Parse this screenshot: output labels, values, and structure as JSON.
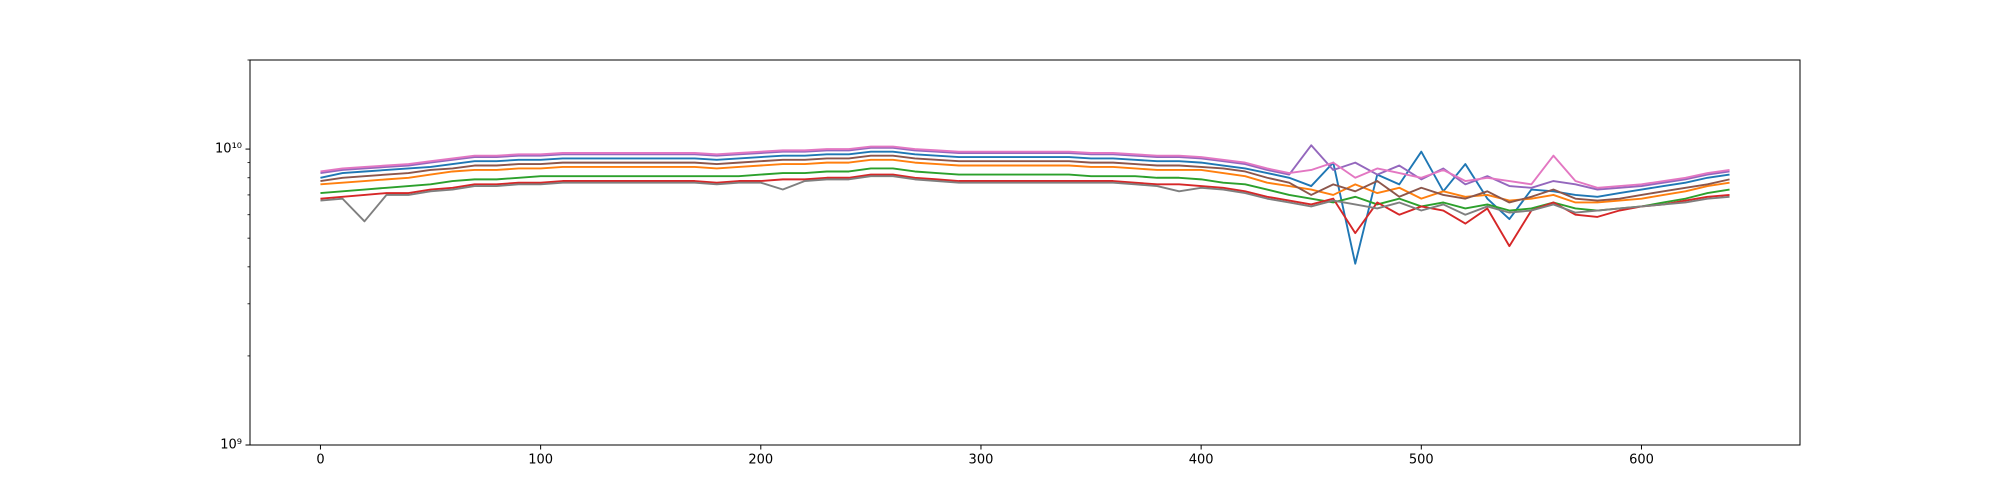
{
  "chart_data": {
    "type": "line",
    "log_y": true,
    "x": [
      0,
      10,
      20,
      30,
      40,
      50,
      60,
      70,
      80,
      90,
      100,
      110,
      120,
      130,
      140,
      150,
      160,
      170,
      180,
      190,
      200,
      210,
      220,
      230,
      240,
      250,
      260,
      270,
      280,
      290,
      300,
      310,
      320,
      330,
      340,
      350,
      360,
      370,
      380,
      390,
      400,
      410,
      420,
      430,
      440,
      450,
      460,
      470,
      480,
      490,
      500,
      510,
      520,
      530,
      540,
      550,
      560,
      570,
      580,
      590,
      600,
      610,
      620,
      630,
      640
    ],
    "xlim": [
      -32,
      672
    ],
    "xticks": [
      0,
      100,
      200,
      300,
      400,
      500,
      600
    ],
    "ylim": [
      1000000000.0,
      20000000000.0
    ],
    "yticks": [
      {
        "value": 1000000000.0,
        "label": "10⁹"
      },
      {
        "value": 10000000000.0,
        "label": "10¹⁰"
      }
    ],
    "yminorticks": [
      2000000000.0,
      3000000000.0,
      4000000000.0,
      5000000000.0,
      6000000000.0,
      7000000000.0,
      8000000000.0,
      9000000000.0,
      20000000000.0
    ],
    "series": [
      {
        "color": "#1f77b4",
        "values": [
          8000000000.0,
          8300000000.0,
          8400000000.0,
          8500000000.0,
          8600000000.0,
          8700000000.0,
          8900000000.0,
          9100000000.0,
          9100000000.0,
          9200000000.0,
          9200000000.0,
          9300000000.0,
          9300000000.0,
          9300000000.0,
          9300000000.0,
          9300000000.0,
          9300000000.0,
          9300000000.0,
          9200000000.0,
          9300000000.0,
          9400000000.0,
          9500000000.0,
          9500000000.0,
          9600000000.0,
          9600000000.0,
          9800000000.0,
          9800000000.0,
          9600000000.0,
          9500000000.0,
          9400000000.0,
          9400000000.0,
          9400000000.0,
          9400000000.0,
          9400000000.0,
          9400000000.0,
          9300000000.0,
          9300000000.0,
          9200000000.0,
          9100000000.0,
          9100000000.0,
          9000000000.0,
          8800000000.0,
          8600000000.0,
          8300000000.0,
          8000000000.0,
          7500000000.0,
          9000000000.0,
          4100000000.0,
          8200000000.0,
          7600000000.0,
          9800000000.0,
          7200000000.0,
          8900000000.0,
          6800000000.0,
          5800000000.0,
          7300000000.0,
          7200000000.0,
          7000000000.0,
          6900000000.0,
          7100000000.0,
          7300000000.0,
          7500000000.0,
          7700000000.0,
          8000000000.0,
          8200000000.0
        ]
      },
      {
        "color": "#ff7f0e",
        "values": [
          7600000000.0,
          7700000000.0,
          7800000000.0,
          7900000000.0,
          8000000000.0,
          8200000000.0,
          8400000000.0,
          8500000000.0,
          8500000000.0,
          8600000000.0,
          8600000000.0,
          8700000000.0,
          8700000000.0,
          8700000000.0,
          8700000000.0,
          8700000000.0,
          8700000000.0,
          8700000000.0,
          8600000000.0,
          8700000000.0,
          8800000000.0,
          8900000000.0,
          8900000000.0,
          9000000000.0,
          9000000000.0,
          9200000000.0,
          9200000000.0,
          9000000000.0,
          8900000000.0,
          8800000000.0,
          8800000000.0,
          8800000000.0,
          8800000000.0,
          8800000000.0,
          8800000000.0,
          8700000000.0,
          8700000000.0,
          8600000000.0,
          8500000000.0,
          8500000000.0,
          8500000000.0,
          8300000000.0,
          8100000000.0,
          7700000000.0,
          7500000000.0,
          7300000000.0,
          7000000000.0,
          7600000000.0,
          7100000000.0,
          7400000000.0,
          6800000000.0,
          7200000000.0,
          6900000000.0,
          7000000000.0,
          6700000000.0,
          6800000000.0,
          7000000000.0,
          6600000000.0,
          6600000000.0,
          6700000000.0,
          6800000000.0,
          7000000000.0,
          7200000000.0,
          7500000000.0,
          7700000000.0
        ]
      },
      {
        "color": "#2ca02c",
        "values": [
          7100000000.0,
          7200000000.0,
          7300000000.0,
          7400000000.0,
          7500000000.0,
          7600000000.0,
          7800000000.0,
          7900000000.0,
          7900000000.0,
          8000000000.0,
          8100000000.0,
          8100000000.0,
          8100000000.0,
          8100000000.0,
          8100000000.0,
          8100000000.0,
          8100000000.0,
          8100000000.0,
          8100000000.0,
          8100000000.0,
          8200000000.0,
          8300000000.0,
          8300000000.0,
          8400000000.0,
          8400000000.0,
          8600000000.0,
          8600000000.0,
          8400000000.0,
          8300000000.0,
          8200000000.0,
          8200000000.0,
          8200000000.0,
          8200000000.0,
          8200000000.0,
          8200000000.0,
          8100000000.0,
          8100000000.0,
          8100000000.0,
          8000000000.0,
          8000000000.0,
          7900000000.0,
          7700000000.0,
          7600000000.0,
          7300000000.0,
          7000000000.0,
          6800000000.0,
          6600000000.0,
          6900000000.0,
          6500000000.0,
          6800000000.0,
          6400000000.0,
          6600000000.0,
          6300000000.0,
          6500000000.0,
          6200000000.0,
          6300000000.0,
          6600000000.0,
          6300000000.0,
          6200000000.0,
          6300000000.0,
          6400000000.0,
          6600000000.0,
          6800000000.0,
          7100000000.0,
          7300000000.0
        ]
      },
      {
        "color": "#d62728",
        "values": [
          6800000000.0,
          6900000000.0,
          7000000000.0,
          7100000000.0,
          7100000000.0,
          7300000000.0,
          7400000000.0,
          7600000000.0,
          7600000000.0,
          7700000000.0,
          7700000000.0,
          7800000000.0,
          7800000000.0,
          7800000000.0,
          7800000000.0,
          7800000000.0,
          7800000000.0,
          7800000000.0,
          7700000000.0,
          7800000000.0,
          7800000000.0,
          7900000000.0,
          7900000000.0,
          8000000000.0,
          8000000000.0,
          8200000000.0,
          8200000000.0,
          8000000000.0,
          7900000000.0,
          7800000000.0,
          7800000000.0,
          7800000000.0,
          7800000000.0,
          7800000000.0,
          7800000000.0,
          7800000000.0,
          7800000000.0,
          7700000000.0,
          7600000000.0,
          7600000000.0,
          7500000000.0,
          7400000000.0,
          7200000000.0,
          6900000000.0,
          6700000000.0,
          6500000000.0,
          6800000000.0,
          5200000000.0,
          6600000000.0,
          6000000000.0,
          6400000000.0,
          6200000000.0,
          5600000000.0,
          6300000000.0,
          4700000000.0,
          6200000000.0,
          6600000000.0,
          6000000000.0,
          5900000000.0,
          6200000000.0,
          6400000000.0,
          6500000000.0,
          6700000000.0,
          6900000000.0,
          7000000000.0
        ]
      },
      {
        "color": "#9467bd",
        "values": [
          8300000000.0,
          8500000000.0,
          8600000000.0,
          8700000000.0,
          8800000000.0,
          9000000000.0,
          9200000000.0,
          9400000000.0,
          9400000000.0,
          9500000000.0,
          9500000000.0,
          9600000000.0,
          9600000000.0,
          9600000000.0,
          9600000000.0,
          9600000000.0,
          9600000000.0,
          9600000000.0,
          9500000000.0,
          9600000000.0,
          9700000000.0,
          9800000000.0,
          9800000000.0,
          9900000000.0,
          9900000000.0,
          10100000000.0,
          10100000000.0,
          9900000000.0,
          9800000000.0,
          9700000000.0,
          9700000000.0,
          9700000000.0,
          9700000000.0,
          9700000000.0,
          9700000000.0,
          9600000000.0,
          9600000000.0,
          9500000000.0,
          9400000000.0,
          9400000000.0,
          9300000000.0,
          9100000000.0,
          8900000000.0,
          8500000000.0,
          8200000000.0,
          10300000000.0,
          8500000000.0,
          9000000000.0,
          8200000000.0,
          8800000000.0,
          7900000000.0,
          8600000000.0,
          7600000000.0,
          8100000000.0,
          7500000000.0,
          7400000000.0,
          7800000000.0,
          7600000000.0,
          7300000000.0,
          7400000000.0,
          7500000000.0,
          7700000000.0,
          7900000000.0,
          8200000000.0,
          8400000000.0
        ]
      },
      {
        "color": "#8c564b",
        "values": [
          7800000000.0,
          8000000000.0,
          8100000000.0,
          8200000000.0,
          8300000000.0,
          8500000000.0,
          8600000000.0,
          8800000000.0,
          8800000000.0,
          8900000000.0,
          8900000000.0,
          9000000000.0,
          9000000000.0,
          9000000000.0,
          9000000000.0,
          9000000000.0,
          9000000000.0,
          9000000000.0,
          8900000000.0,
          9000000000.0,
          9100000000.0,
          9200000000.0,
          9200000000.0,
          9300000000.0,
          9300000000.0,
          9500000000.0,
          9500000000.0,
          9300000000.0,
          9200000000.0,
          9100000000.0,
          9100000000.0,
          9100000000.0,
          9100000000.0,
          9100000000.0,
          9100000000.0,
          9000000000.0,
          9000000000.0,
          8900000000.0,
          8800000000.0,
          8800000000.0,
          8700000000.0,
          8600000000.0,
          8400000000.0,
          8000000000.0,
          7700000000.0,
          7000000000.0,
          7600000000.0,
          7200000000.0,
          7800000000.0,
          6900000000.0,
          7400000000.0,
          7000000000.0,
          6800000000.0,
          7200000000.0,
          6600000000.0,
          6900000000.0,
          7300000000.0,
          6800000000.0,
          6700000000.0,
          6800000000.0,
          7000000000.0,
          7200000000.0,
          7400000000.0,
          7600000000.0,
          7900000000.0
        ]
      },
      {
        "color": "#e377c2",
        "values": [
          8400000000.0,
          8600000000.0,
          8700000000.0,
          8800000000.0,
          8900000000.0,
          9100000000.0,
          9300000000.0,
          9500000000.0,
          9500000000.0,
          9600000000.0,
          9600000000.0,
          9700000000.0,
          9700000000.0,
          9700000000.0,
          9700000000.0,
          9700000000.0,
          9700000000.0,
          9700000000.0,
          9600000000.0,
          9700000000.0,
          9800000000.0,
          9900000000.0,
          9900000000.0,
          10000000000.0,
          10000000000.0,
          10200000000.0,
          10200000000.0,
          10000000000.0,
          9900000000.0,
          9800000000.0,
          9800000000.0,
          9800000000.0,
          9800000000.0,
          9800000000.0,
          9800000000.0,
          9700000000.0,
          9700000000.0,
          9600000000.0,
          9500000000.0,
          9500000000.0,
          9400000000.0,
          9200000000.0,
          9000000000.0,
          8600000000.0,
          8300000000.0,
          8500000000.0,
          9000000000.0,
          8000000000.0,
          8600000000.0,
          8300000000.0,
          8000000000.0,
          8500000000.0,
          7800000000.0,
          8000000000.0,
          7800000000.0,
          7600000000.0,
          9500000000.0,
          7800000000.0,
          7400000000.0,
          7500000000.0,
          7600000000.0,
          7800000000.0,
          8000000000.0,
          8300000000.0,
          8500000000.0
        ]
      },
      {
        "color": "#7f7f7f",
        "values": [
          6700000000.0,
          6800000000.0,
          5700000000.0,
          7000000000.0,
          7000000000.0,
          7200000000.0,
          7300000000.0,
          7500000000.0,
          7500000000.0,
          7600000000.0,
          7600000000.0,
          7700000000.0,
          7700000000.0,
          7700000000.0,
          7700000000.0,
          7700000000.0,
          7700000000.0,
          7700000000.0,
          7600000000.0,
          7700000000.0,
          7700000000.0,
          7300000000.0,
          7800000000.0,
          7900000000.0,
          7900000000.0,
          8100000000.0,
          8100000000.0,
          7900000000.0,
          7800000000.0,
          7700000000.0,
          7700000000.0,
          7700000000.0,
          7700000000.0,
          7700000000.0,
          7700000000.0,
          7700000000.0,
          7700000000.0,
          7600000000.0,
          7500000000.0,
          7200000000.0,
          7400000000.0,
          7300000000.0,
          7100000000.0,
          6800000000.0,
          6600000000.0,
          6400000000.0,
          6700000000.0,
          6500000000.0,
          6300000000.0,
          6600000000.0,
          6200000000.0,
          6500000000.0,
          6000000000.0,
          6400000000.0,
          6100000000.0,
          6200000000.0,
          6500000000.0,
          6100000000.0,
          6200000000.0,
          6300000000.0,
          6400000000.0,
          6500000000.0,
          6600000000.0,
          6800000000.0,
          6900000000.0
        ]
      }
    ]
  }
}
